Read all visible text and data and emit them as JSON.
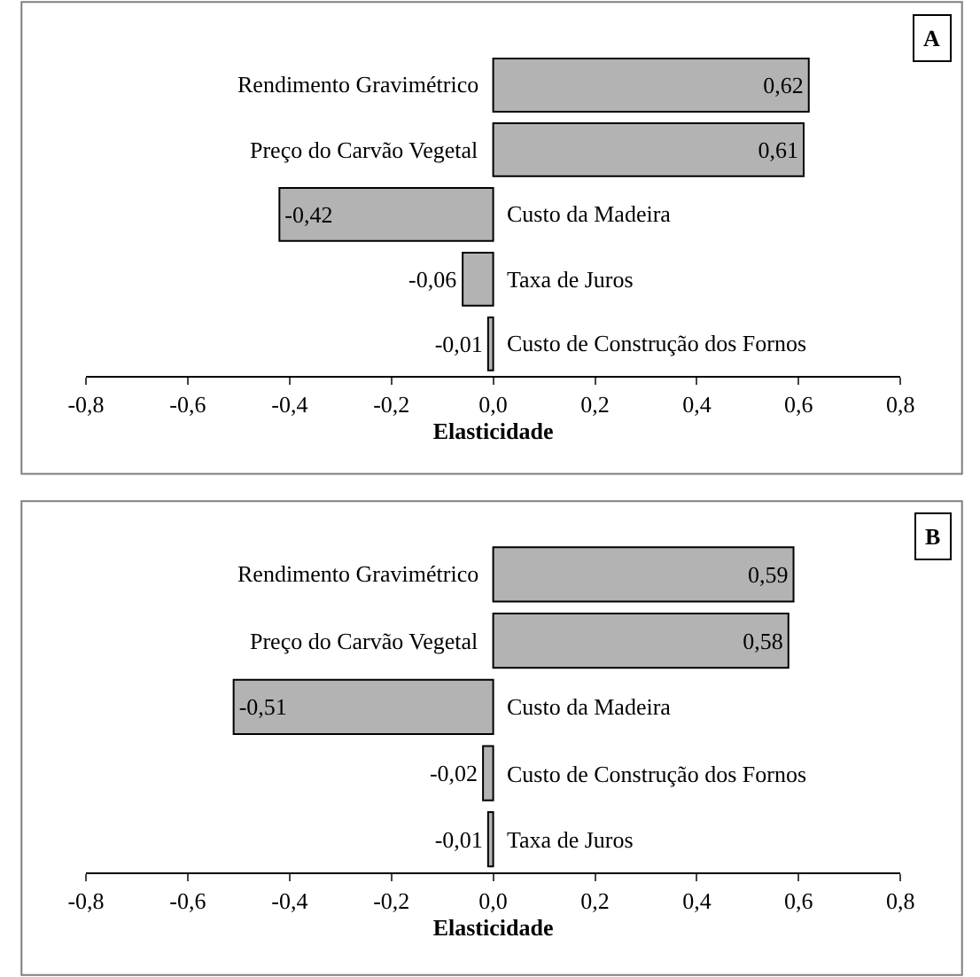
{
  "chart_data": [
    {
      "type": "bar",
      "orientation": "horizontal",
      "tick_labels": "x",
      "xlabel": "Elasticidade",
      "annotations": [
        "A"
      ],
      "categories": [
        "Rendimento Gravimétrico",
        "Preço do Carvão Vegetal",
        "Custo da Madeira",
        "Taxa de Juros",
        "Custo de Construção dos Fornos"
      ],
      "values": [
        0.62,
        0.61,
        -0.42,
        -0.06,
        -0.01
      ],
      "value_labels": [
        "0,62",
        "0,61",
        "-0,42",
        "-0,06",
        "-0,01"
      ],
      "color": "#b3b3b3",
      "xlim": [
        -0.8,
        0.8
      ],
      "xticks": [
        {
          "value": -0.8,
          "label": "-0,8"
        },
        {
          "value": -0.6,
          "label": "-0,6"
        },
        {
          "value": -0.4,
          "label": "-0,4"
        },
        {
          "value": -0.2,
          "label": "-0,2"
        },
        {
          "value": 0,
          "label": "0,0"
        },
        {
          "value": 0.2,
          "label": "0,2"
        },
        {
          "value": 0.4,
          "label": "0,4"
        },
        {
          "value": 0.6,
          "label": "0,6"
        },
        {
          "value": 0.8,
          "label": "0,8"
        }
      ]
    },
    {
      "type": "bar",
      "orientation": "horizontal",
      "tick_labels": "x",
      "xlabel": "Elasticidade",
      "annotations": [
        "B"
      ],
      "categories": [
        "Rendimento Gravimétrico",
        "Preço do Carvão Vegetal",
        "Custo da Madeira",
        "Custo de Construção dos Fornos",
        "Taxa de Juros"
      ],
      "values": [
        0.59,
        0.58,
        -0.51,
        -0.02,
        -0.01
      ],
      "value_labels": [
        "0,59",
        "0,58",
        "-0,51",
        "-0,02",
        "-0,01"
      ],
      "color": "#b3b3b3",
      "xlim": [
        -0.8,
        0.8
      ],
      "xticks": [
        {
          "value": -0.8,
          "label": "-0,8"
        },
        {
          "value": -0.6,
          "label": "-0,6"
        },
        {
          "value": -0.4,
          "label": "-0,4"
        },
        {
          "value": -0.2,
          "label": "-0,2"
        },
        {
          "value": 0,
          "label": "0,0"
        },
        {
          "value": 0.2,
          "label": "0,2"
        },
        {
          "value": 0.4,
          "label": "0,4"
        },
        {
          "value": 0.6,
          "label": "0,6"
        },
        {
          "value": 0.8,
          "label": "0,8"
        }
      ]
    }
  ]
}
